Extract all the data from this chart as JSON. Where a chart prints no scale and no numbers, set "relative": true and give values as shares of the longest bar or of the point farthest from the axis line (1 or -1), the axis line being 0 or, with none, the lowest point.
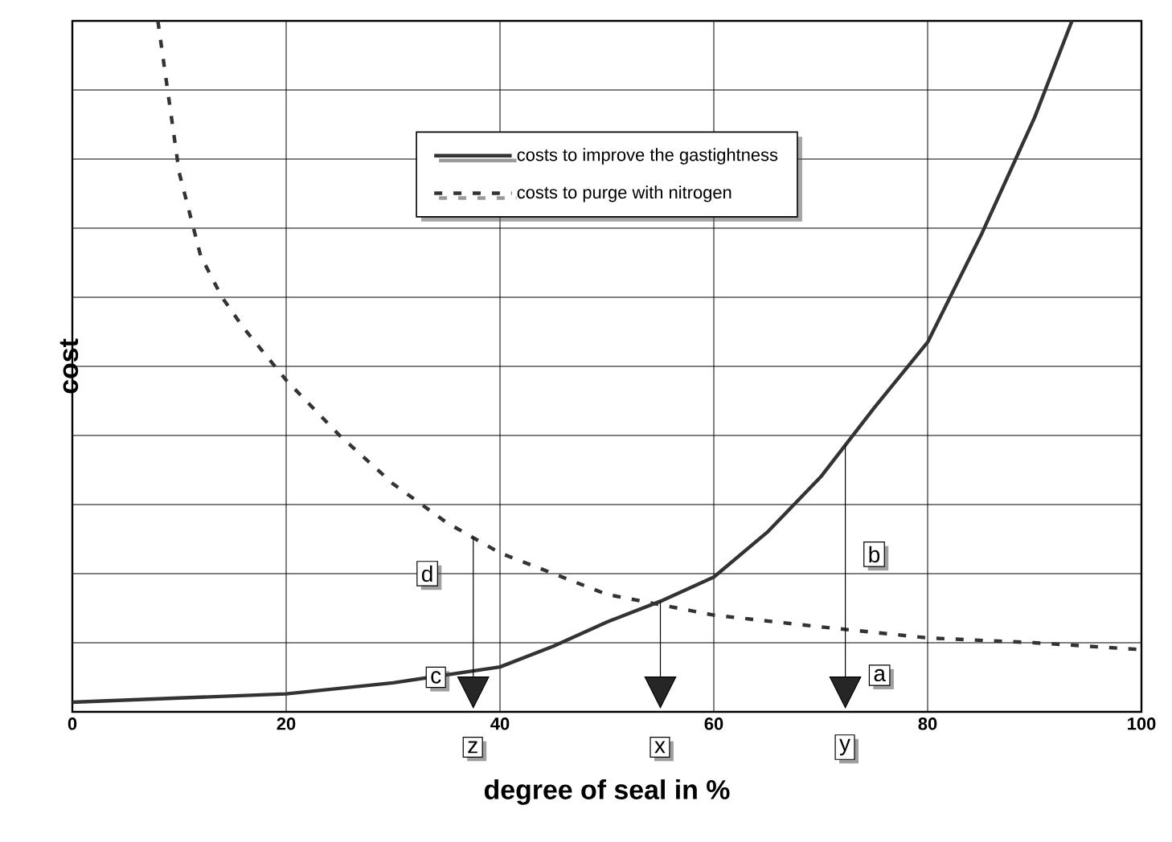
{
  "chart_data": {
    "type": "line",
    "xlabel": "degree of seal in %",
    "ylabel": "cost",
    "xlim": [
      0,
      100
    ],
    "xticks": [
      0,
      20,
      40,
      60,
      80,
      100
    ],
    "relative": true,
    "grid": true,
    "legend": "top",
    "series": [
      {
        "name": "costs to improve the gastightness",
        "color": "#333333",
        "line_style": "solid",
        "x": [
          0,
          10,
          20,
          30,
          40,
          45,
          50,
          55,
          60,
          65,
          70,
          75,
          80,
          85,
          90,
          93.5
        ],
        "values": [
          0.014,
          0.02,
          0.026,
          0.042,
          0.065,
          0.095,
          0.13,
          0.16,
          0.195,
          0.26,
          0.34,
          0.44,
          0.535,
          0.69,
          0.86,
          1.0
        ]
      },
      {
        "name": "costs to purge with nitrogen",
        "color": "#333333",
        "line_style": "dashed",
        "x": [
          8,
          10,
          12,
          14,
          16,
          20,
          25,
          30,
          35,
          40,
          45,
          50,
          55,
          60,
          70,
          80,
          90,
          100
        ],
        "values": [
          1.0,
          0.78,
          0.66,
          0.6,
          0.556,
          0.48,
          0.4,
          0.33,
          0.274,
          0.23,
          0.2,
          0.17,
          0.155,
          0.14,
          0.123,
          0.107,
          0.1,
          0.09
        ]
      }
    ],
    "annotations": [
      {
        "text": "a",
        "x": 75.5,
        "y": 0.053
      },
      {
        "text": "b",
        "x": 75,
        "y": 0.228
      },
      {
        "text": "c",
        "x": 34,
        "y": 0.05
      },
      {
        "text": "d",
        "x": 33.2,
        "y": 0.2
      }
    ],
    "ref_lines": [
      {
        "axis": "x",
        "value": 37.5,
        "label": "z"
      },
      {
        "axis": "x",
        "value": 55,
        "label": "x"
      },
      {
        "axis": "x",
        "value": 72.3,
        "label": "y"
      }
    ]
  }
}
